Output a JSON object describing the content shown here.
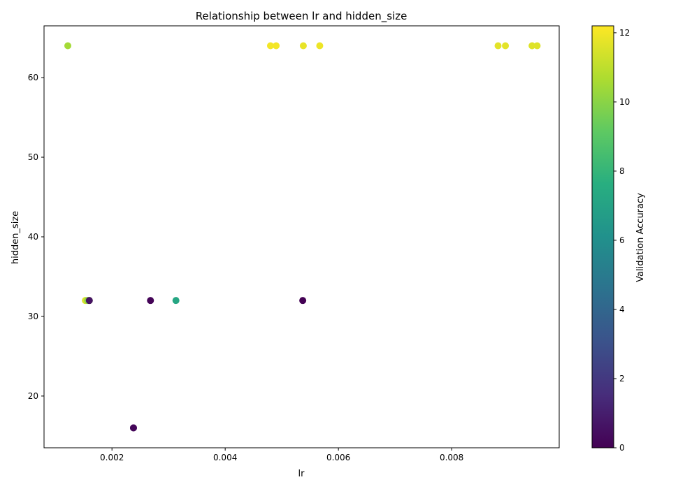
{
  "chart_data": {
    "type": "scatter",
    "title": "Relationship between lr and hidden_size",
    "xlabel": "lr",
    "ylabel": "hidden_size",
    "xlim": [
      0.0008,
      0.0099
    ],
    "ylim": [
      13.5,
      66.5
    ],
    "xticks": [
      0.002,
      0.004,
      0.006,
      0.008
    ],
    "xtick_labels": [
      "0.002",
      "0.004",
      "0.006",
      "0.008"
    ],
    "yticks": [
      20,
      30,
      40,
      50,
      60
    ],
    "ytick_labels": [
      "20",
      "30",
      "40",
      "50",
      "60"
    ],
    "colorbar": {
      "label": "Validation Accuracy",
      "min": 0,
      "max": 12.2,
      "ticks": [
        0,
        2,
        4,
        6,
        8,
        10,
        12
      ],
      "tick_labels": [
        "0",
        "2",
        "4",
        "6",
        "8",
        "10",
        "12"
      ],
      "colormap": "viridis"
    },
    "points": [
      {
        "lr": 0.00122,
        "hidden_size": 64,
        "accuracy": 10.5
      },
      {
        "lr": 0.0048,
        "hidden_size": 64,
        "accuracy": 12.0
      },
      {
        "lr": 0.0049,
        "hidden_size": 64,
        "accuracy": 12.0
      },
      {
        "lr": 0.00538,
        "hidden_size": 64,
        "accuracy": 11.8
      },
      {
        "lr": 0.00567,
        "hidden_size": 64,
        "accuracy": 11.9
      },
      {
        "lr": 0.00882,
        "hidden_size": 64,
        "accuracy": 11.7
      },
      {
        "lr": 0.00895,
        "hidden_size": 64,
        "accuracy": 11.7
      },
      {
        "lr": 0.00942,
        "hidden_size": 64,
        "accuracy": 11.6
      },
      {
        "lr": 0.00951,
        "hidden_size": 64,
        "accuracy": 11.6
      },
      {
        "lr": 0.00153,
        "hidden_size": 32,
        "accuracy": 11.5
      },
      {
        "lr": 0.00157,
        "hidden_size": 32,
        "accuracy": 10.0
      },
      {
        "lr": 0.0016,
        "hidden_size": 32,
        "accuracy": 10.2
      },
      {
        "lr": 0.0016,
        "hidden_size": 32,
        "accuracy": 0.6
      },
      {
        "lr": 0.00268,
        "hidden_size": 32,
        "accuracy": 0.1
      },
      {
        "lr": 0.00313,
        "hidden_size": 32,
        "accuracy": 7.2
      },
      {
        "lr": 0.00537,
        "hidden_size": 32,
        "accuracy": 0.0
      },
      {
        "lr": 0.00238,
        "hidden_size": 16,
        "accuracy": 0.1
      },
      {
        "lr": 0.00238,
        "hidden_size": 16,
        "accuracy": 0.2
      }
    ]
  },
  "colors": {
    "frame": "#000000",
    "background": "#ffffff"
  }
}
